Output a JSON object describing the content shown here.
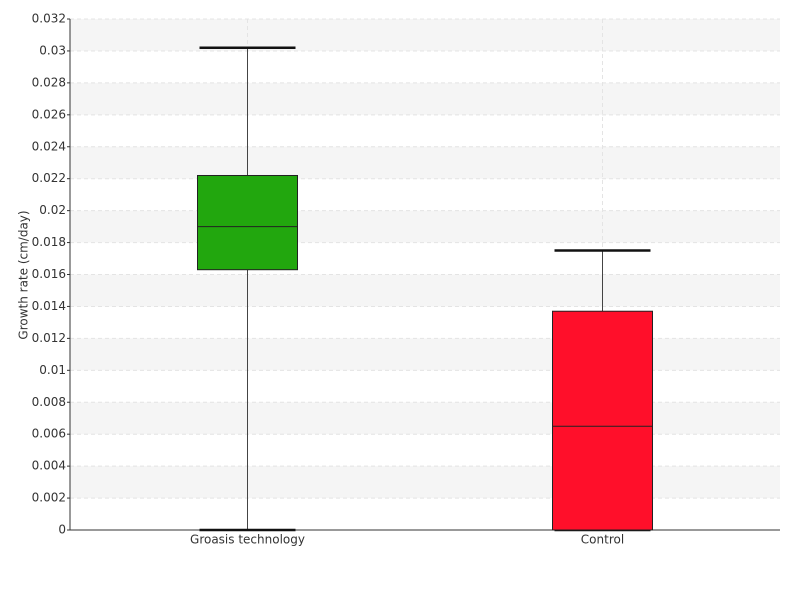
{
  "chart_data": {
    "type": "box",
    "y_label": "Growth rate (cm/day)",
    "categories": [
      "Groasis technology",
      "Control"
    ],
    "boxes": [
      {
        "min": 0,
        "q1": 0.0163,
        "median": 0.019,
        "q3": 0.0222,
        "max": 0.0302,
        "color": "#22a70e"
      },
      {
        "min": 0,
        "q1": 0,
        "median": 0.0065,
        "q3": 0.0137,
        "max": 0.0175,
        "color": "#ff0f2a"
      }
    ],
    "ylim": [
      0,
      0.032
    ],
    "yticks": [
      0,
      0.002,
      0.004,
      0.006,
      0.008,
      0.01,
      0.012,
      0.014,
      0.016,
      0.018,
      0.02,
      0.022,
      0.024,
      0.026,
      0.028,
      0.03,
      0.032
    ],
    "grid": true
  }
}
